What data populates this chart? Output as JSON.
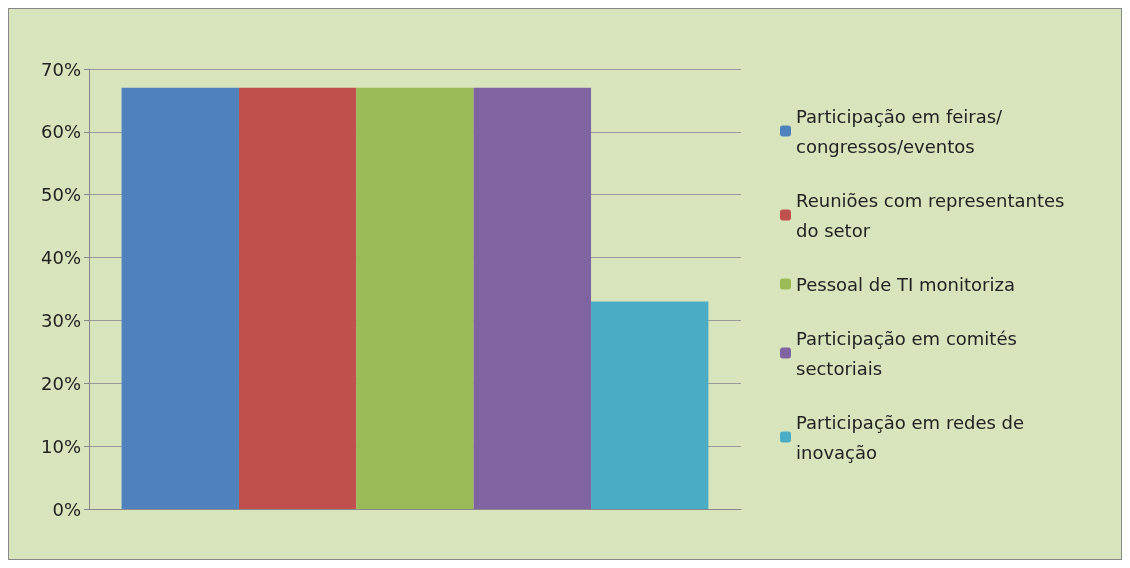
{
  "chart_data": {
    "type": "bar",
    "categories": [
      null
    ],
    "series": [
      {
        "name": "Participação em feiras/congressos/eventos",
        "color": "#4f81bd",
        "values": [
          67
        ]
      },
      {
        "name": "Reuniões com representantes do setor",
        "color": "#c0504d",
        "values": [
          67
        ]
      },
      {
        "name": "Pessoal de TI monitoriza",
        "color": "#9bbb59",
        "values": [
          67
        ]
      },
      {
        "name": "Participação em comités sectoriais",
        "color": "#8064a2",
        "values": [
          67
        ]
      },
      {
        "name": "Participação em redes de inovação",
        "color": "#4bacc6",
        "values": [
          33
        ]
      }
    ],
    "ylim": [
      0,
      70
    ],
    "yticks": [
      {
        "value": 0,
        "label": "0%"
      },
      {
        "value": 10,
        "label": "10%"
      },
      {
        "value": 20,
        "label": "20%"
      },
      {
        "value": 30,
        "label": "30%"
      },
      {
        "value": 40,
        "label": "40%"
      },
      {
        "value": 50,
        "label": "50%"
      },
      {
        "value": 60,
        "label": "60%"
      },
      {
        "value": 70,
        "label": "70%"
      }
    ],
    "grid": "y",
    "legend": "right"
  }
}
